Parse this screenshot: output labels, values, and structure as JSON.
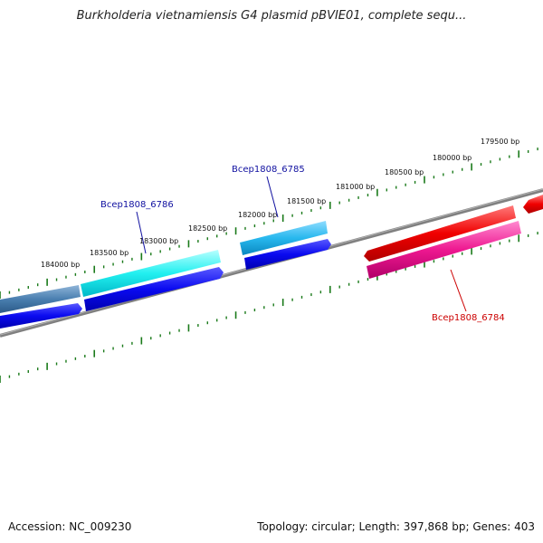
{
  "header": {
    "title": "Burkholderia vietnamiensis G4 plasmid pBVIE01, complete sequ..."
  },
  "footer": {
    "accession": "Accession: NC_009230",
    "topology": "Topology: circular; Length: 397,868 bp; Genes: 403"
  },
  "colors": {
    "backbone": "#808080",
    "tick": "#1a7a1a",
    "label_blue": "#1010a0",
    "label_red": "#cc0000"
  },
  "ruler": {
    "labels": [
      "179500 bp",
      "180000 bp",
      "180500 bp",
      "181000 bp",
      "181500 bp",
      "182000 bp",
      "182500 bp",
      "183000 bp",
      "183500 bp",
      "184000 bp"
    ]
  },
  "genes": [
    {
      "name": "Bcep1808_6786",
      "color": "label_blue"
    },
    {
      "name": "Bcep1808_6785",
      "color": "label_blue"
    },
    {
      "name": "Bcep1808_6784",
      "color": "label_red"
    }
  ]
}
